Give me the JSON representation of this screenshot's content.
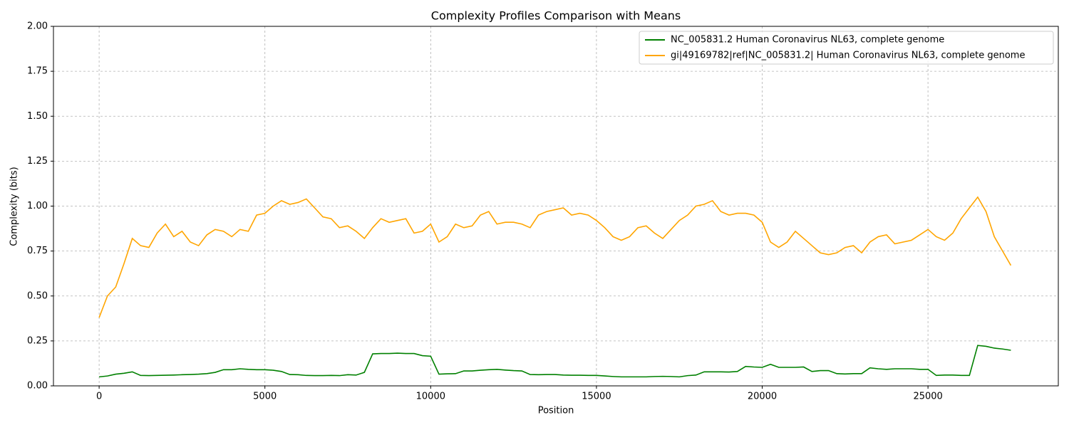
{
  "chart_data": {
    "type": "line",
    "title": "Complexity Profiles Comparison with Means",
    "xlabel": "Position",
    "ylabel": "Complexity (bits)",
    "x": [
      0,
      250,
      500,
      750,
      1000,
      1250,
      1500,
      1750,
      2000,
      2250,
      2500,
      2750,
      3000,
      3250,
      3500,
      3750,
      4000,
      4250,
      4500,
      4750,
      5000,
      5250,
      5500,
      5750,
      6000,
      6250,
      6500,
      6750,
      7000,
      7250,
      7500,
      7750,
      8000,
      8250,
      8500,
      8750,
      9000,
      9250,
      9500,
      9750,
      10000,
      10250,
      10500,
      10750,
      11000,
      11250,
      11500,
      11750,
      12000,
      12250,
      12500,
      12750,
      13000,
      13250,
      13500,
      13750,
      14000,
      14250,
      14500,
      14750,
      15000,
      15250,
      15500,
      15750,
      16000,
      16250,
      16500,
      16750,
      17000,
      17250,
      17500,
      17750,
      18000,
      18250,
      18500,
      18750,
      19000,
      19250,
      19500,
      19750,
      20000,
      20250,
      20500,
      20750,
      21000,
      21250,
      21500,
      21750,
      22000,
      22250,
      22500,
      22750,
      23000,
      23250,
      23500,
      23750,
      24000,
      24250,
      24500,
      24750,
      25000,
      25250,
      25500,
      25750,
      26000,
      26250,
      26500,
      26750,
      27000,
      27250,
      27500
    ],
    "series": [
      {
        "name": "NC_005831.2 Human Coronavirus NL63, complete genome",
        "color": "#008000",
        "values": [
          0.05,
          0.055,
          0.065,
          0.07,
          0.078,
          0.058,
          0.057,
          0.058,
          0.059,
          0.06,
          0.062,
          0.063,
          0.065,
          0.068,
          0.075,
          0.09,
          0.09,
          0.095,
          0.092,
          0.09,
          0.09,
          0.087,
          0.08,
          0.063,
          0.062,
          0.058,
          0.057,
          0.057,
          0.058,
          0.057,
          0.062,
          0.06,
          0.075,
          0.178,
          0.18,
          0.18,
          0.182,
          0.18,
          0.18,
          0.168,
          0.165,
          0.065,
          0.067,
          0.068,
          0.083,
          0.083,
          0.087,
          0.09,
          0.092,
          0.088,
          0.085,
          0.083,
          0.063,
          0.062,
          0.063,
          0.063,
          0.06,
          0.059,
          0.059,
          0.058,
          0.058,
          0.055,
          0.052,
          0.05,
          0.05,
          0.05,
          0.05,
          0.052,
          0.053,
          0.052,
          0.05,
          0.057,
          0.06,
          0.078,
          0.078,
          0.078,
          0.077,
          0.08,
          0.108,
          0.105,
          0.103,
          0.12,
          0.103,
          0.103,
          0.103,
          0.105,
          0.08,
          0.085,
          0.085,
          0.068,
          0.066,
          0.068,
          0.068,
          0.1,
          0.095,
          0.092,
          0.095,
          0.095,
          0.095,
          0.092,
          0.092,
          0.058,
          0.06,
          0.06,
          0.058,
          0.058,
          0.225,
          0.22,
          0.21,
          0.205,
          0.198
        ]
      },
      {
        "name": "gi|49169782|ref|NC_005831.2| Human Coronavirus NL63, complete genome",
        "color": "#ffa500",
        "values": [
          0.38,
          0.5,
          0.55,
          0.68,
          0.82,
          0.78,
          0.77,
          0.85,
          0.9,
          0.83,
          0.86,
          0.8,
          0.78,
          0.84,
          0.87,
          0.86,
          0.83,
          0.87,
          0.86,
          0.95,
          0.96,
          1.0,
          1.03,
          1.01,
          1.02,
          1.04,
          0.99,
          0.94,
          0.93,
          0.88,
          0.89,
          0.86,
          0.82,
          0.88,
          0.93,
          0.91,
          0.92,
          0.93,
          0.85,
          0.86,
          0.9,
          0.8,
          0.83,
          0.9,
          0.88,
          0.89,
          0.95,
          0.97,
          0.9,
          0.91,
          0.91,
          0.9,
          0.88,
          0.95,
          0.97,
          0.98,
          0.99,
          0.95,
          0.96,
          0.95,
          0.92,
          0.88,
          0.83,
          0.81,
          0.83,
          0.88,
          0.89,
          0.85,
          0.82,
          0.87,
          0.92,
          0.95,
          1.0,
          1.01,
          1.03,
          0.97,
          0.95,
          0.96,
          0.96,
          0.95,
          0.91,
          0.8,
          0.77,
          0.8,
          0.86,
          0.82,
          0.78,
          0.74,
          0.73,
          0.74,
          0.77,
          0.78,
          0.74,
          0.8,
          0.83,
          0.84,
          0.79,
          0.8,
          0.81,
          0.84,
          0.87,
          0.83,
          0.81,
          0.85,
          0.93,
          0.99,
          1.05,
          0.97,
          0.83,
          0.75,
          0.67
        ]
      }
    ],
    "xlim": [
      -1378,
      28931
    ],
    "ylim": [
      0,
      2
    ],
    "xticks": [
      0,
      5000,
      10000,
      15000,
      20000,
      25000
    ],
    "yticks": [
      {
        "value": 0,
        "label": "0.00"
      },
      {
        "value": 0.25,
        "label": "0.25"
      },
      {
        "value": 0.5,
        "label": "0.50"
      },
      {
        "value": 0.75,
        "label": "0.75"
      },
      {
        "value": 1,
        "label": "1.00"
      },
      {
        "value": 1.25,
        "label": "1.25"
      },
      {
        "value": 1.5,
        "label": "1.50"
      },
      {
        "value": 1.75,
        "label": "1.75"
      },
      {
        "value": 2,
        "label": "2.00"
      }
    ],
    "grid": true,
    "legend": "upper right"
  }
}
